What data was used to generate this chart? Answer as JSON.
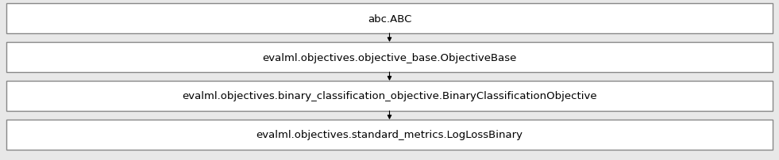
{
  "nodes": [
    "abc.ABC",
    "evalml.objectives.objective_base.ObjectiveBase",
    "evalml.objectives.binary_classification_objective.BinaryClassificationObjective",
    "evalml.objectives.standard_metrics.LogLossBinary"
  ],
  "background_color": "#ffffff",
  "outer_bg_color": "#e8e8e8",
  "box_edge_color": "#888888",
  "box_fill_color": "#ffffff",
  "arrow_color": "#000000",
  "text_color": "#000000",
  "font_size": 9.5,
  "fig_width": 9.81,
  "fig_height": 2.03,
  "dpi": 100
}
